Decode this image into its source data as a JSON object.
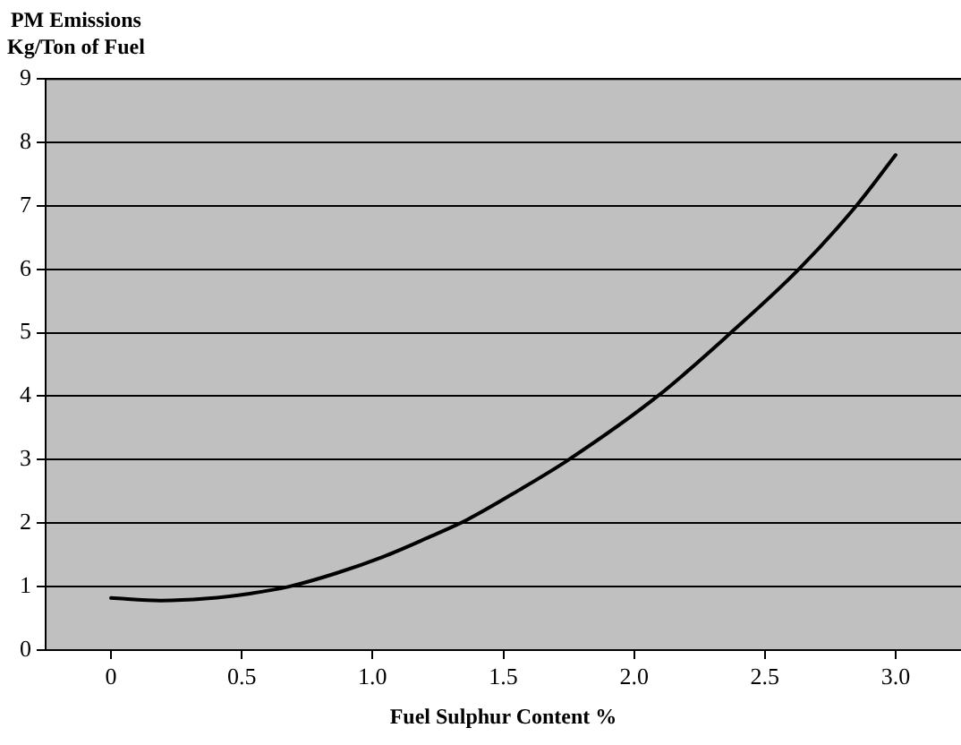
{
  "chart_data": {
    "type": "line",
    "ylabel": "PM Emissions\nKg/Ton of Fuel",
    "xlabel": "Fuel Sulphur Content %",
    "series": [
      {
        "color": "#000000",
        "x": [
          0,
          0.19,
          0.36,
          0.53,
          0.68,
          0.86,
          1.04,
          1.2,
          1.36,
          1.56,
          1.75,
          2.09,
          2.37,
          2.63,
          2.85,
          3.0
        ],
        "values": [
          0.82,
          0.78,
          0.81,
          0.89,
          1.0,
          1.21,
          1.47,
          1.75,
          2.05,
          2.52,
          3.0,
          4.0,
          5.0,
          6.0,
          7.0,
          7.8
        ]
      }
    ],
    "xlim": [
      -0.25,
      3.25
    ],
    "xticks": [
      0,
      {
        "value": 0.5,
        "label": "0.5"
      },
      {
        "value": 1,
        "label": "1.0"
      },
      {
        "value": 1.5,
        "label": "1.5"
      },
      {
        "value": 2,
        "label": "2.0"
      },
      {
        "value": 2.5,
        "label": "2.5"
      },
      {
        "value": 3,
        "label": "3.0"
      }
    ],
    "ylim": [
      0,
      9
    ],
    "yticks": [
      0,
      1,
      2,
      3,
      4,
      5,
      6,
      7,
      8,
      9
    ],
    "grid": "y",
    "legend": false,
    "marker": "none",
    "line_style": "solid"
  }
}
